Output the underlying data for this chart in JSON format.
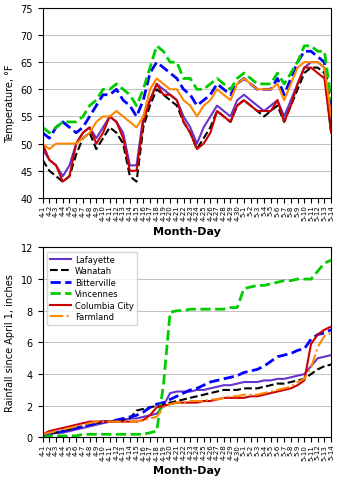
{
  "x_labels": [
    "4-1",
    "4-2",
    "4-3",
    "4-4",
    "4-5",
    "4-6",
    "4-7",
    "4-8",
    "4-9",
    "4-10",
    "4-11",
    "4-12",
    "4-13",
    "4-14",
    "4-15",
    "4-16",
    "4-17",
    "4-18",
    "4-19",
    "4-20",
    "4-21",
    "4-22",
    "4-23",
    "4-24",
    "4-25",
    "4-26",
    "4-27",
    "4-28",
    "4-29",
    "4-30",
    "5-1",
    "5-2",
    "5-3",
    "5-4",
    "5-5",
    "5-6",
    "5-7",
    "5-8",
    "5-9",
    "5-10",
    "5-11",
    "5-12",
    "5-13",
    "5-14"
  ],
  "temp": {
    "Lafayette": [
      49,
      47,
      46,
      44,
      46,
      50,
      52,
      53,
      51,
      53,
      55,
      54,
      52,
      46,
      46,
      55,
      58,
      61,
      60,
      59,
      58,
      55,
      53,
      50,
      53,
      55,
      57,
      56,
      55,
      58,
      59,
      58,
      57,
      56,
      57,
      58,
      55,
      58,
      61,
      64,
      65,
      65,
      64,
      53
    ],
    "Wanatah": [
      47,
      45,
      44,
      43,
      44,
      48,
      51,
      52,
      49,
      51,
      53,
      52,
      50,
      44,
      43,
      53,
      57,
      60,
      59,
      58,
      57,
      54,
      52,
      49,
      51,
      53,
      56,
      55,
      54,
      57,
      58,
      57,
      56,
      55,
      56,
      57,
      54,
      57,
      60,
      63,
      64,
      64,
      63,
      52
    ],
    "Bitterville": [
      52,
      51,
      53,
      54,
      53,
      52,
      53,
      55,
      57,
      59,
      59,
      60,
      58,
      57,
      55,
      58,
      63,
      65,
      64,
      63,
      62,
      60,
      59,
      57,
      58,
      59,
      61,
      60,
      59,
      61,
      62,
      61,
      60,
      60,
      60,
      62,
      59,
      62,
      65,
      67,
      67,
      66,
      65,
      56
    ],
    "Vincennes": [
      53,
      52,
      53,
      54,
      54,
      54,
      55,
      57,
      58,
      60,
      60,
      61,
      60,
      59,
      57,
      60,
      64,
      68,
      67,
      65,
      65,
      62,
      62,
      60,
      60,
      61,
      62,
      61,
      60,
      62,
      63,
      62,
      61,
      61,
      61,
      63,
      61,
      63,
      65,
      68,
      68,
      67,
      67,
      58
    ],
    "Columbia City": [
      50,
      47,
      46,
      43,
      44,
      50,
      52,
      53,
      50,
      52,
      55,
      54,
      51,
      45,
      45,
      54,
      58,
      61,
      59,
      59,
      58,
      54,
      52,
      49,
      50,
      52,
      56,
      55,
      54,
      57,
      58,
      57,
      56,
      56,
      56,
      58,
      54,
      57,
      61,
      64,
      64,
      63,
      62,
      52
    ],
    "Farmland": [
      50,
      49,
      50,
      50,
      50,
      50,
      51,
      52,
      54,
      55,
      55,
      56,
      55,
      54,
      53,
      55,
      60,
      62,
      61,
      60,
      60,
      58,
      57,
      55,
      57,
      58,
      60,
      59,
      58,
      61,
      62,
      61,
      60,
      60,
      60,
      61,
      58,
      61,
      64,
      65,
      65,
      65,
      64,
      55
    ]
  },
  "rain": {
    "Lafayette": [
      0.1,
      0.2,
      0.3,
      0.3,
      0.4,
      0.5,
      0.6,
      0.7,
      0.8,
      0.9,
      1.0,
      1.0,
      1.1,
      1.2,
      1.2,
      1.3,
      1.4,
      1.5,
      2.0,
      2.8,
      2.9,
      2.9,
      2.9,
      3.0,
      3.0,
      3.1,
      3.2,
      3.3,
      3.3,
      3.4,
      3.5,
      3.5,
      3.5,
      3.6,
      3.6,
      3.7,
      3.7,
      3.8,
      3.9,
      4.0,
      4.5,
      5.0,
      5.1,
      5.2
    ],
    "Wanatah": [
      0.1,
      0.2,
      0.3,
      0.4,
      0.5,
      0.6,
      0.7,
      0.8,
      0.9,
      1.0,
      1.0,
      1.1,
      1.1,
      1.2,
      1.7,
      1.8,
      1.9,
      2.0,
      2.1,
      2.2,
      2.3,
      2.4,
      2.5,
      2.6,
      2.7,
      2.8,
      2.9,
      3.0,
      3.0,
      3.0,
      3.1,
      3.1,
      3.1,
      3.2,
      3.3,
      3.4,
      3.4,
      3.5,
      3.6,
      3.7,
      4.0,
      4.3,
      4.5,
      4.6
    ],
    "Bitterville": [
      0.1,
      0.2,
      0.3,
      0.4,
      0.5,
      0.6,
      0.7,
      0.8,
      0.9,
      1.0,
      1.0,
      1.1,
      1.2,
      1.3,
      1.4,
      1.6,
      1.9,
      2.1,
      2.2,
      2.4,
      2.6,
      2.8,
      3.0,
      3.1,
      3.3,
      3.5,
      3.6,
      3.7,
      3.8,
      3.9,
      4.1,
      4.2,
      4.3,
      4.5,
      4.8,
      5.1,
      5.2,
      5.3,
      5.5,
      5.6,
      6.2,
      6.5,
      6.6,
      6.8
    ],
    "Vincennes": [
      0.0,
      0.1,
      0.1,
      0.1,
      0.1,
      0.1,
      0.2,
      0.2,
      0.2,
      0.2,
      0.2,
      0.2,
      0.2,
      0.2,
      0.2,
      0.2,
      0.3,
      0.4,
      3.3,
      7.9,
      8.0,
      8.0,
      8.1,
      8.1,
      8.1,
      8.1,
      8.1,
      8.1,
      8.2,
      8.2,
      9.4,
      9.5,
      9.6,
      9.6,
      9.7,
      9.8,
      9.9,
      9.9,
      10.0,
      10.0,
      10.0,
      10.5,
      11.0,
      11.2
    ],
    "Columbia City": [
      0.2,
      0.4,
      0.5,
      0.6,
      0.7,
      0.8,
      0.9,
      1.0,
      1.0,
      1.0,
      1.0,
      1.0,
      1.0,
      1.0,
      1.0,
      1.1,
      1.4,
      1.9,
      2.0,
      2.1,
      2.2,
      2.2,
      2.2,
      2.2,
      2.3,
      2.3,
      2.4,
      2.5,
      2.5,
      2.5,
      2.5,
      2.6,
      2.6,
      2.7,
      2.8,
      2.9,
      3.0,
      3.1,
      3.3,
      3.6,
      5.9,
      6.5,
      6.8,
      7.0
    ],
    "Farmland": [
      0.2,
      0.3,
      0.4,
      0.5,
      0.6,
      0.7,
      0.8,
      0.9,
      1.0,
      1.0,
      1.0,
      1.0,
      1.0,
      1.0,
      1.0,
      1.1,
      1.2,
      1.3,
      1.9,
      2.1,
      2.2,
      2.2,
      2.3,
      2.3,
      2.3,
      2.4,
      2.4,
      2.5,
      2.6,
      2.6,
      2.7,
      2.7,
      2.7,
      2.8,
      2.9,
      3.0,
      3.1,
      3.2,
      3.5,
      3.7,
      4.4,
      5.7,
      6.4,
      6.6
    ]
  },
  "temp_styles": {
    "Lafayette": {
      "color": "#6633cc",
      "ls": "-",
      "lw": 1.5
    },
    "Wanatah": {
      "color": "#000000",
      "ls": "--",
      "lw": 1.5
    },
    "Bitterville": {
      "color": "#0000ff",
      "ls": "--",
      "lw": 2.0
    },
    "Vincennes": {
      "color": "#00cc00",
      "ls": "--",
      "lw": 2.0
    },
    "Columbia City": {
      "color": "#cc0000",
      "ls": "-",
      "lw": 1.5
    },
    "Farmland": {
      "color": "#ff8800",
      "ls": "-",
      "lw": 1.5
    }
  },
  "rain_styles": {
    "Lafayette": {
      "color": "#6633cc",
      "ls": "-",
      "lw": 1.5
    },
    "Wanatah": {
      "color": "#000000",
      "ls": "--",
      "lw": 1.5
    },
    "Bitterville": {
      "color": "#0000ff",
      "ls": "--",
      "lw": 2.0
    },
    "Vincennes": {
      "color": "#00cc00",
      "ls": "--",
      "lw": 2.0
    },
    "Columbia City": {
      "color": "#cc0000",
      "ls": "-",
      "lw": 1.5
    },
    "Farmland": {
      "color": "#ff8800",
      "ls": "-.",
      "lw": 1.5
    }
  },
  "temp_ylim": [
    40,
    75
  ],
  "temp_yticks": [
    40,
    45,
    50,
    55,
    60,
    65,
    70,
    75
  ],
  "rain_ylim": [
    0,
    12
  ],
  "rain_yticks": [
    0,
    2,
    4,
    6,
    8,
    10,
    12
  ],
  "temp_ylabel": "Temperature, °F",
  "rain_ylabel": "Rainfall since April 1, inches",
  "xlabel": "Month-Day",
  "series_order_temp": [
    "Lafayette",
    "Wanatah",
    "Bitterville",
    "Vincennes",
    "Columbia City",
    "Farmland"
  ],
  "series_order_rain": [
    "Lafayette",
    "Wanatah",
    "Bitterville",
    "Vincennes",
    "Columbia City",
    "Farmland"
  ],
  "legend_labels": [
    "Lafayette",
    "Wanatah",
    "Bitterville",
    "Vincennes",
    "Columbia City",
    "Farmland"
  ],
  "bg_color": "#ffffff",
  "grid_color": "#aaaaaa"
}
